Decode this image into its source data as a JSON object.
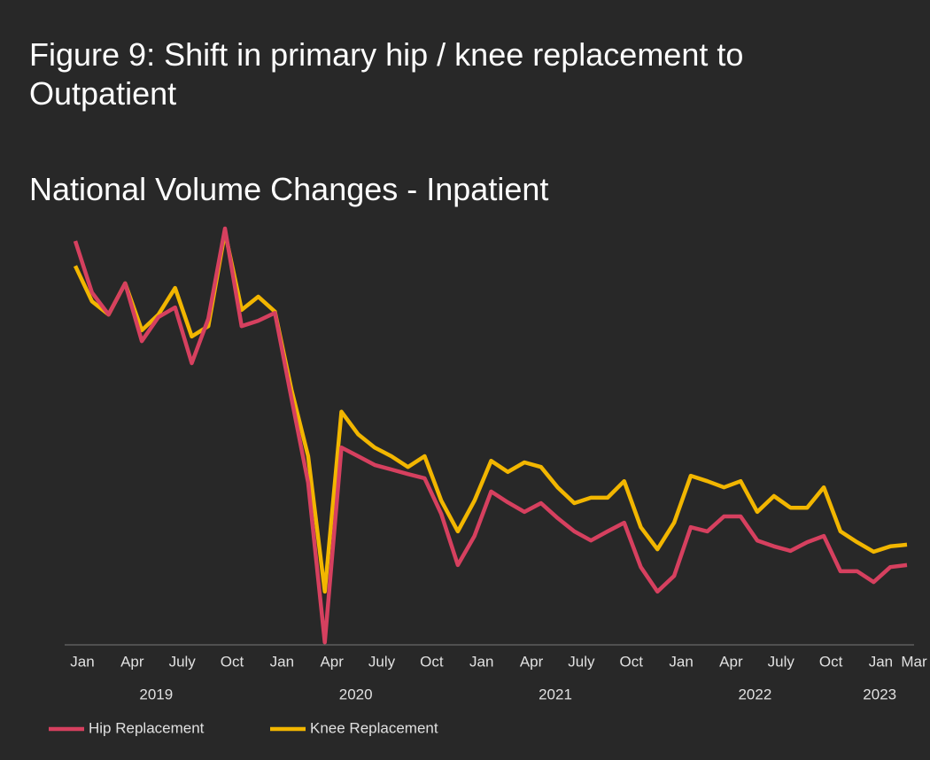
{
  "chart_data": {
    "type": "line",
    "title": "Figure 9: Shift in primary hip / knee replacement to Outpatient",
    "subtitle": "National Volume Changes - Inpatient",
    "categories": [
      "Jan",
      null,
      null,
      "Apr",
      null,
      null,
      "July",
      null,
      null,
      "Oct",
      null,
      null,
      "Jan",
      null,
      null,
      "Apr",
      null,
      null,
      "July",
      null,
      null,
      "Oct",
      null,
      null,
      "Jan",
      null,
      null,
      "Apr",
      null,
      null,
      "July",
      null,
      null,
      "Oct",
      null,
      null,
      "Jan",
      null,
      null,
      "Apr",
      null,
      null,
      "July",
      null,
      null,
      "Oct",
      null,
      null,
      "Jan",
      null,
      "Mar"
    ],
    "years": [
      "2019",
      "2020",
      "2021",
      "2022",
      "2023"
    ],
    "ylim": [
      0,
      100
    ],
    "legend": "bottom-left",
    "series": [
      {
        "name": "Hip Replacement",
        "color": "#d6405f",
        "values": [
          97.0,
          84.6,
          79.3,
          86.8,
          72.9,
          78.7,
          81.0,
          67.6,
          78.3,
          100.0,
          76.5,
          77.8,
          79.7,
          59.1,
          38.8,
          0.4,
          47.3,
          45.2,
          43.1,
          42.0,
          40.9,
          39.9,
          31.3,
          19.0,
          26.0,
          36.7,
          34.1,
          31.8,
          33.9,
          30.3,
          27.1,
          24.9,
          27.1,
          29.2,
          18.5,
          12.6,
          16.4,
          28.1,
          27.1,
          30.7,
          30.7,
          24.9,
          23.5,
          22.4,
          24.5,
          26.0,
          17.5,
          17.5,
          14.9,
          18.5,
          19.0
        ]
      },
      {
        "name": "Knee Replacement",
        "color": "#f2b600",
        "values": [
          91.0,
          82.5,
          79.3,
          86.8,
          75.5,
          79.3,
          85.7,
          74.0,
          76.5,
          99.1,
          80.4,
          83.6,
          80.0,
          61.2,
          45.2,
          12.6,
          55.9,
          50.5,
          47.3,
          45.2,
          42.6,
          45.2,
          34.5,
          27.1,
          34.5,
          44.1,
          41.4,
          43.7,
          42.6,
          37.7,
          33.9,
          35.2,
          35.2,
          39.2,
          28.1,
          22.8,
          29.2,
          40.5,
          39.2,
          37.7,
          39.2,
          31.8,
          35.6,
          32.8,
          32.8,
          37.7,
          27.1,
          24.5,
          22.2,
          23.5,
          23.9
        ]
      }
    ]
  }
}
